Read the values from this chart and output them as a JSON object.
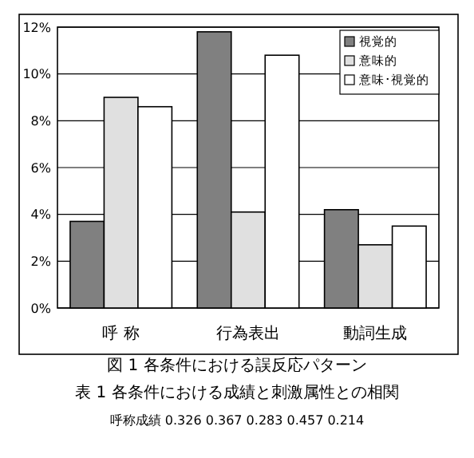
{
  "chart_data": {
    "type": "bar",
    "categories": [
      "呼 称",
      "行為表出",
      "動詞生成"
    ],
    "series": [
      {
        "name": "視覚的",
        "color": "#808080",
        "values": [
          3.7,
          11.8,
          4.2
        ]
      },
      {
        "name": "意味的",
        "color": "#e0e0e0",
        "values": [
          9.0,
          4.1,
          2.7
        ]
      },
      {
        "name": "意味･視覚的",
        "color": "#ffffff",
        "values": [
          8.6,
          10.8,
          3.5
        ]
      }
    ],
    "ylim": [
      0,
      12
    ],
    "yticks": [
      {
        "value": 0,
        "label": "0%"
      },
      {
        "value": 2,
        "label": "2%"
      },
      {
        "value": 4,
        "label": "4%"
      },
      {
        "value": 6,
        "label": "6%"
      },
      {
        "value": 8,
        "label": "8%"
      },
      {
        "value": 10,
        "label": "10%"
      },
      {
        "value": 12,
        "label": "12%"
      }
    ],
    "grid": "y",
    "legend": "top right",
    "annotations": [
      "図 1 各条件における誤反応パターン",
      "表 1 各条件における成績と刺激属性との相関",
      "呼称成績 0.326 0.367 0.283 0.457 0.214"
    ]
  }
}
